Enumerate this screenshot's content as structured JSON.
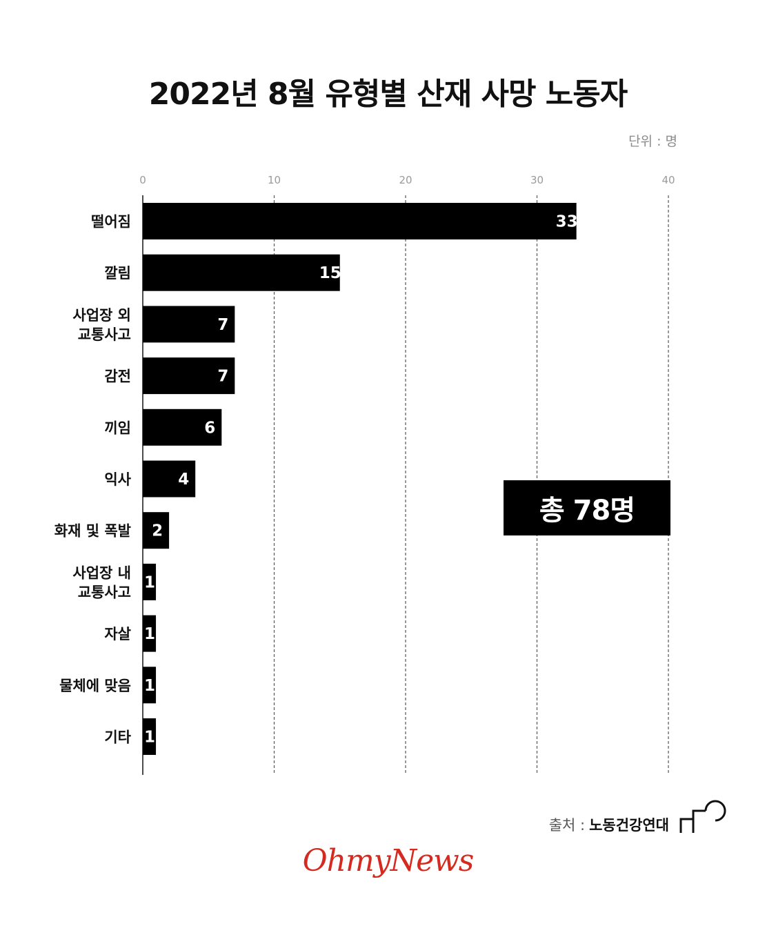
{
  "title": "2022년 8월 유형별 산재 사망 노동자",
  "unit": "단위 : 명",
  "total": "총 78명",
  "source": {
    "prefix": "출처 :",
    "org": "노동건강연대"
  },
  "brand": "OhmyNews",
  "colors": {
    "bar": "#000000",
    "grid": "#555555",
    "brand": "#d42a1f"
  },
  "chart_data": {
    "type": "bar",
    "orientation": "horizontal",
    "categories": [
      "떨어짐",
      "깔림",
      "사업장 외\n교통사고",
      "감전",
      "끼임",
      "익사",
      "화재 및 폭발",
      "사업장 내\n교통사고",
      "자살",
      "물체에 맞음",
      "기타"
    ],
    "values": [
      33,
      15,
      7,
      7,
      6,
      4,
      2,
      1,
      1,
      1,
      1
    ],
    "xlim": [
      0,
      40
    ],
    "xticks": [
      0,
      10,
      20,
      30,
      40
    ],
    "grid": "vertical dashed",
    "data_labels": true
  }
}
